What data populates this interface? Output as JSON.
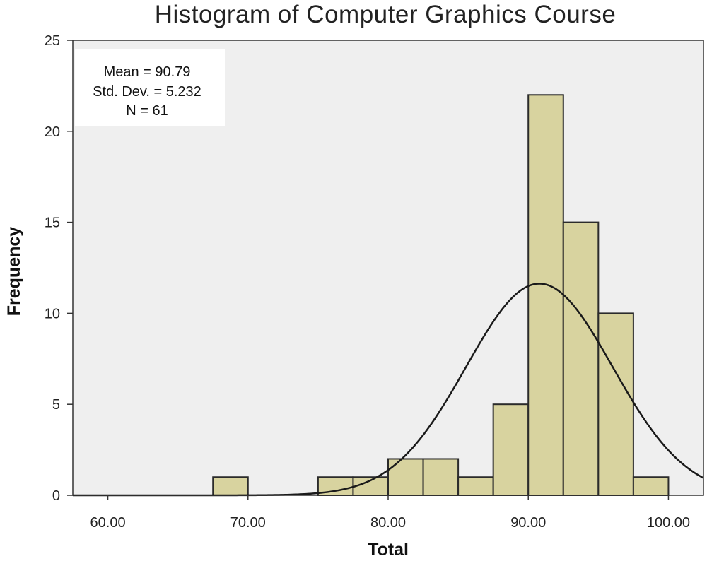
{
  "colors": {
    "plot_background": "#efefef",
    "bar_fill": "#d8d39f",
    "bar_stroke": "#2b2b2b",
    "curve": "#1a1a1a",
    "stats_box": "#ffffff"
  },
  "stats": {
    "mean_text": "Mean = 90.79",
    "sd_text": "Std. Dev. = 5.232",
    "n_text": "N = 61"
  },
  "chart_data": {
    "type": "bar",
    "title": "Histogram of Computer Graphics Course",
    "xlabel": "Total",
    "ylabel": "Frequency",
    "xlim": [
      57.5,
      102.5
    ],
    "ylim": [
      0,
      25
    ],
    "xticks": [
      "60.00",
      "70.00",
      "80.00",
      "90.00",
      "100.00"
    ],
    "xtick_values": [
      60,
      70,
      80,
      90,
      100
    ],
    "yticks": [
      "0",
      "5",
      "10",
      "15",
      "20",
      "25"
    ],
    "ytick_values": [
      0,
      5,
      10,
      15,
      20,
      25
    ],
    "bin_width": 2.5,
    "bins": [
      {
        "start": 67.5,
        "end": 70.0,
        "count": 1
      },
      {
        "start": 75.0,
        "end": 77.5,
        "count": 1
      },
      {
        "start": 77.5,
        "end": 80.0,
        "count": 1
      },
      {
        "start": 80.0,
        "end": 82.5,
        "count": 2
      },
      {
        "start": 82.5,
        "end": 85.0,
        "count": 2
      },
      {
        "start": 85.0,
        "end": 87.5,
        "count": 1
      },
      {
        "start": 87.5,
        "end": 90.0,
        "count": 5
      },
      {
        "start": 90.0,
        "end": 92.5,
        "count": 22
      },
      {
        "start": 92.5,
        "end": 95.0,
        "count": 15
      },
      {
        "start": 95.0,
        "end": 97.5,
        "count": 10
      },
      {
        "start": 97.5,
        "end": 100.0,
        "count": 1
      }
    ],
    "normal_curve": {
      "mean": 90.79,
      "sd": 5.232,
      "n": 61
    },
    "grid": false,
    "legend": "none"
  }
}
